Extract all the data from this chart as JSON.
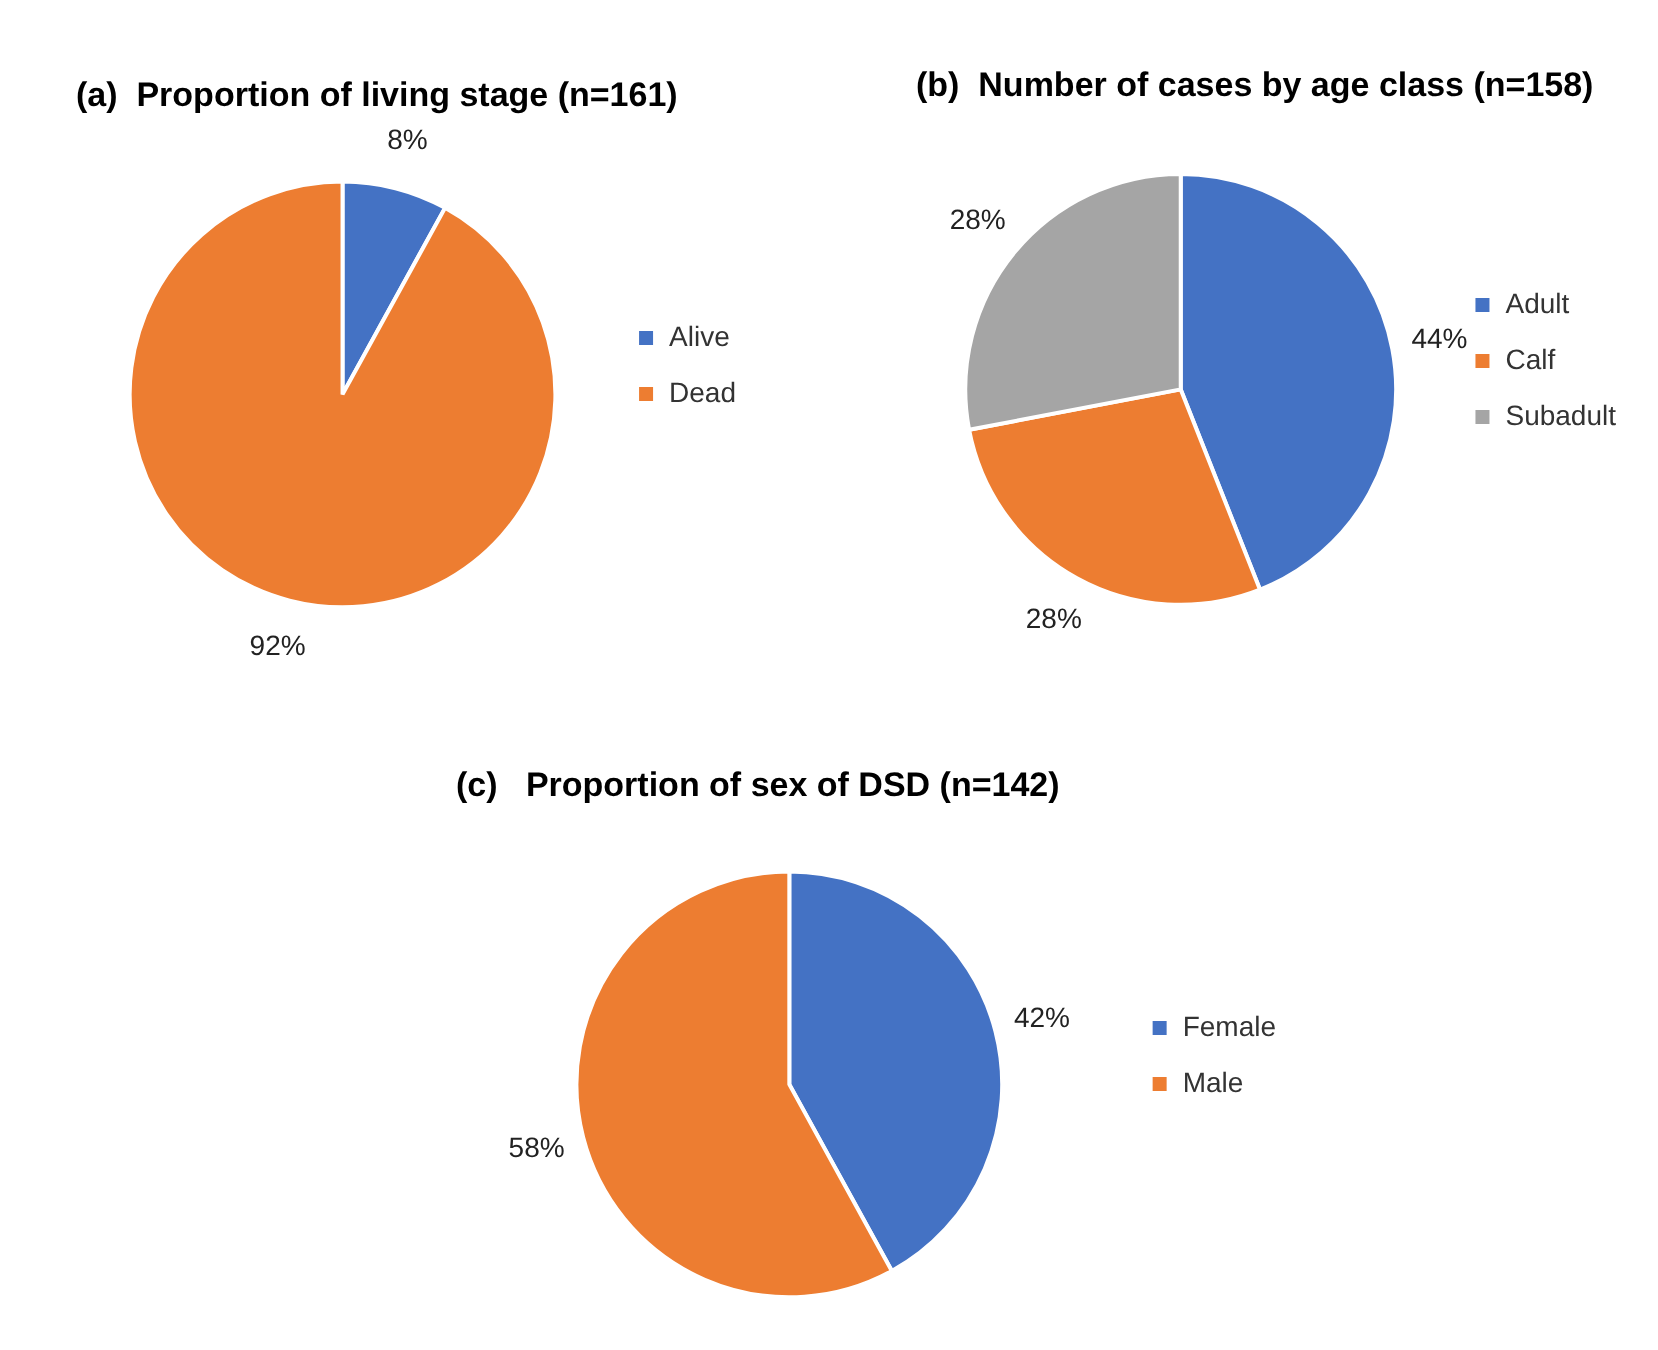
{
  "chart_data": [
    {
      "type": "pie",
      "title": "(a)  Proportion of living stage (n=161)",
      "categories": [
        "Alive",
        "Dead"
      ],
      "values": [
        8,
        92
      ],
      "colors": [
        "#4472c4",
        "#ed7d31"
      ],
      "value_labels": [
        "8%",
        "92%"
      ],
      "legend": "right"
    },
    {
      "type": "pie",
      "title": "(b)  Number of cases by age class (n=158)",
      "categories": [
        "Adult",
        "Calf",
        "Subadult"
      ],
      "values": [
        44,
        28,
        28
      ],
      "colors": [
        "#4472c4",
        "#ed7d31",
        "#a5a5a5"
      ],
      "value_labels": [
        "44%",
        "28%",
        "28%"
      ],
      "legend": "right"
    },
    {
      "type": "pie",
      "title": "(c)   Proportion of sex of DSD (n=142)",
      "categories": [
        "Female",
        "Male"
      ],
      "values": [
        42,
        58
      ],
      "colors": [
        "#4472c4",
        "#ed7d31"
      ],
      "value_labels": [
        "42%",
        "58%"
      ],
      "legend": "right"
    }
  ]
}
